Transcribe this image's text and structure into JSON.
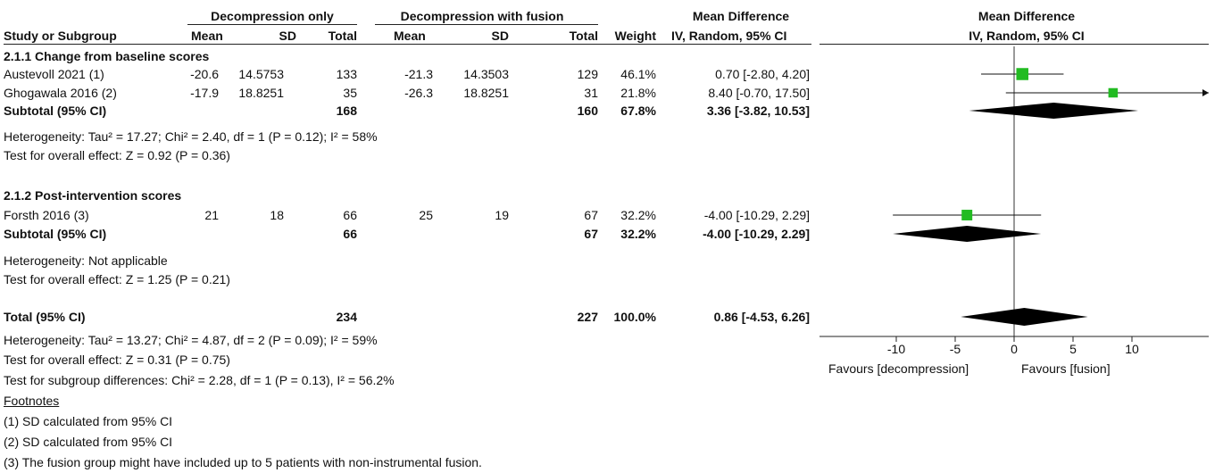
{
  "header": {
    "group1": "Decompression only",
    "group2": "Decompression with fusion",
    "md_top": "Mean Difference",
    "md_top_plot": "Mean Difference",
    "study": "Study or Subgroup",
    "mean1": "Mean",
    "sd1": "SD",
    "total1": "Total",
    "mean2": "Mean",
    "sd2": "SD",
    "total2": "Total",
    "weight": "Weight",
    "md_sub": "IV, Random, 95% CI",
    "md_sub_plot": "IV, Random, 95% CI"
  },
  "subgroup1": {
    "title": "2.1.1 Change from baseline scores",
    "subtotal": {
      "label": "Subtotal (95% CI)",
      "total1": "168",
      "total2": "160",
      "weight": "67.8%",
      "ci": "3.36 [-3.82, 10.53]"
    },
    "heterogeneity": "Heterogeneity: Tau² = 17.27; Chi² = 2.40, df = 1 (P = 0.12); I² = 58%",
    "overall": "Test for overall effect: Z = 0.92 (P = 0.36)"
  },
  "subgroup2": {
    "title": "2.1.2 Post-intervention scores",
    "subtotal": {
      "label": "Subtotal (95% CI)",
      "total1": "66",
      "total2": "67",
      "weight": "32.2%",
      "ci": "-4.00 [-10.29, 2.29]"
    },
    "heterogeneity": "Heterogeneity: Not applicable",
    "overall": "Test for overall effect: Z = 1.25 (P = 0.21)"
  },
  "studies": [
    {
      "name": "Austevoll 2021 (1)",
      "mean1": "-20.6",
      "sd1": "14.5753",
      "total1": "133",
      "mean2": "-21.3",
      "sd2": "14.3503",
      "total2": "129",
      "weight": "46.1%",
      "ci": "0.70 [-2.80, 4.20]"
    },
    {
      "name": "Ghogawala 2016 (2)",
      "mean1": "-17.9",
      "sd1": "18.8251",
      "total1": "35",
      "mean2": "-26.3",
      "sd2": "18.8251",
      "total2": "31",
      "weight": "21.8%",
      "ci": "8.40 [-0.70, 17.50]"
    },
    {
      "name": "Forsth 2016 (3)",
      "mean1": "21",
      "sd1": "18",
      "total1": "66",
      "mean2": "25",
      "sd2": "19",
      "total2": "67",
      "weight": "32.2%",
      "ci": "-4.00 [-10.29, 2.29]"
    }
  ],
  "total": {
    "label": "Total (95% CI)",
    "total1": "234",
    "total2": "227",
    "weight": "100.0%",
    "ci": "0.86 [-4.53, 6.26]",
    "heterogeneity": "Heterogeneity: Tau² = 13.27; Chi² = 4.87, df = 2 (P = 0.09); I² = 59%",
    "overall": "Test for overall effect: Z = 0.31 (P = 0.75)",
    "subgroup_diff": "Test for subgroup differences: Chi² = 2.28, df = 1 (P = 0.13), I² = 56.2%"
  },
  "footnotes": {
    "title": "Footnotes",
    "items": [
      "(1) SD calculated from 95% CI",
      "(2) SD calculated from 95% CI",
      "(3) The fusion group might have included up to 5 patients with non-instrumental fusion."
    ]
  },
  "chart_data": {
    "type": "forest",
    "xlim": [
      -20,
      20
    ],
    "ticks": [
      "-10",
      "-5",
      "0",
      "5",
      "10"
    ],
    "tick_values": [
      -10,
      -5,
      0,
      5,
      10
    ],
    "favours_left": "Favours [decompression]",
    "favours_right": "Favours [fusion]",
    "point_color": "#22bb22",
    "studies": [
      {
        "name": "Austevoll 2021 (1)",
        "md": 0.7,
        "lo": -2.8,
        "hi": 4.2,
        "weight": 46.1
      },
      {
        "name": "Ghogawala 2016 (2)",
        "md": 8.4,
        "lo": -0.7,
        "hi": 17.5,
        "weight": 21.8
      },
      {
        "name": "Forsth 2016 (3)",
        "md": -4.0,
        "lo": -10.29,
        "hi": 2.29,
        "weight": 32.2
      }
    ],
    "pooled": [
      {
        "name": "Subtotal 2.1.1",
        "md": 3.36,
        "lo": -3.82,
        "hi": 10.53
      },
      {
        "name": "Subtotal 2.1.2",
        "md": -4.0,
        "lo": -10.29,
        "hi": 2.29
      },
      {
        "name": "Total",
        "md": 0.86,
        "lo": -4.53,
        "hi": 6.26
      }
    ]
  }
}
